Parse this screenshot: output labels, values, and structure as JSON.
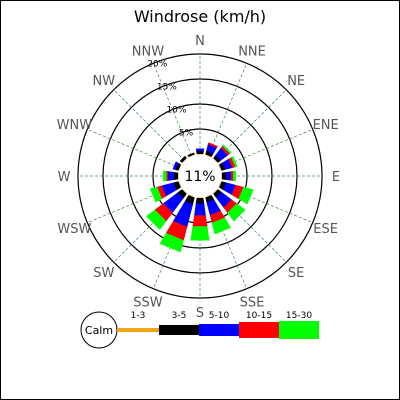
{
  "chart_data": {
    "type": "windrose",
    "title": "Windrose (km/h)",
    "directions": [
      "N",
      "NNE",
      "NE",
      "ENE",
      "E",
      "ESE",
      "SE",
      "SSE",
      "S",
      "SSW",
      "SW",
      "WSW",
      "W",
      "WNW",
      "NW",
      "NNW"
    ],
    "ring_labels": [
      "5%",
      "10%",
      "15%",
      "20%"
    ],
    "ring_values": [
      5,
      10,
      15,
      20
    ],
    "max_percent": 20,
    "calm": {
      "label": "Calm",
      "percent_text": "11%",
      "percent": 11
    },
    "speed_bins": [
      {
        "label": "1-3",
        "color": "#f5a21b"
      },
      {
        "label": "3-5",
        "color": "#000000"
      },
      {
        "label": "5-10",
        "color": "#0000ff"
      },
      {
        "label": "10-15",
        "color": "#ff0000"
      },
      {
        "label": "15-30",
        "color": "#00ff00"
      }
    ],
    "series": [
      {
        "direction": "N",
        "values": [
          0.1,
          0.6,
          0.4,
          0.0,
          0.0
        ]
      },
      {
        "direction": "NNE",
        "values": [
          0.1,
          0.7,
          1.4,
          0.3,
          0.0
        ]
      },
      {
        "direction": "NE",
        "values": [
          0.1,
          0.7,
          1.8,
          0.5,
          0.3
        ]
      },
      {
        "direction": "ENE",
        "values": [
          0.1,
          0.7,
          1.5,
          0.6,
          0.4
        ]
      },
      {
        "direction": "E",
        "values": [
          0.1,
          0.8,
          1.0,
          0.4,
          0.5
        ]
      },
      {
        "direction": "ESE",
        "values": [
          0.1,
          0.9,
          2.0,
          1.6,
          2.0
        ]
      },
      {
        "direction": "SE",
        "values": [
          0.1,
          0.9,
          2.5,
          1.3,
          2.1
        ]
      },
      {
        "direction": "SSE",
        "values": [
          0.1,
          1.0,
          2.6,
          1.6,
          2.3
        ]
      },
      {
        "direction": "S",
        "values": [
          0.1,
          1.1,
          2.4,
          2.2,
          2.8
        ]
      },
      {
        "direction": "SSW",
        "values": [
          0.1,
          1.4,
          4.6,
          2.8,
          2.4
        ]
      },
      {
        "direction": "SW",
        "values": [
          0.1,
          1.1,
          3.6,
          2.1,
          2.1
        ]
      },
      {
        "direction": "WSW",
        "values": [
          0.1,
          1.0,
          2.4,
          1.0,
          1.4
        ]
      },
      {
        "direction": "W",
        "values": [
          0.1,
          0.8,
          1.2,
          0.3,
          0.6
        ]
      },
      {
        "direction": "WNW",
        "values": [
          0.1,
          0.6,
          0.5,
          0.0,
          0.0
        ]
      },
      {
        "direction": "NW",
        "values": [
          0.1,
          0.5,
          0.0,
          0.0,
          0.0
        ]
      },
      {
        "direction": "NNW",
        "values": [
          0.1,
          0.3,
          0.0,
          0.0,
          0.0
        ]
      }
    ]
  }
}
